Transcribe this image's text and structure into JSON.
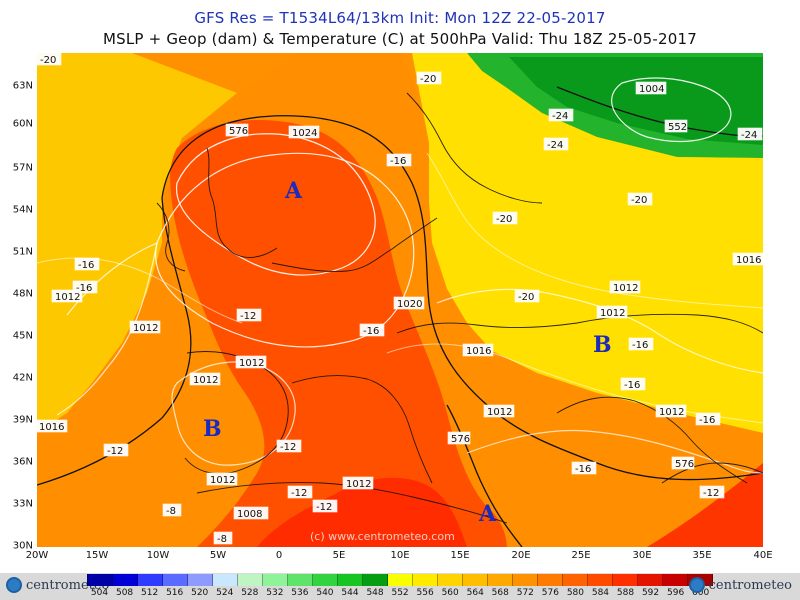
{
  "header": {
    "title_line1": "GFS Res = T1534L64/13km    Init: Mon 12Z 22-05-2017",
    "title_line2": "MSLP + Geop (dam) & Temperature (C) at 500hPa  Valid: Thu 18Z 25-05-2017"
  },
  "axes": {
    "lat_labels": [
      "63N",
      "60N",
      "57N",
      "54N",
      "51N",
      "48N",
      "45N",
      "42N",
      "39N",
      "36N",
      "33N",
      "30N"
    ],
    "lon_labels": [
      "20W",
      "15W",
      "10W",
      "5W",
      "0",
      "5E",
      "10E",
      "15E",
      "20E",
      "25E",
      "30E",
      "35E",
      "40E"
    ]
  },
  "pressure_systems": [
    {
      "symbol": "A",
      "kind": "high"
    },
    {
      "symbol": "B",
      "kind": "low"
    },
    {
      "symbol": "B",
      "kind": "low"
    },
    {
      "symbol": "A",
      "kind": "high"
    }
  ],
  "labels": {
    "mslp": [
      "1024",
      "1020",
      "1016",
      "1016",
      "1016",
      "1012",
      "1012",
      "1012",
      "1012",
      "1012",
      "1012",
      "1012",
      "1012",
      "1012",
      "1012",
      "1008",
      "1004"
    ],
    "geop": [
      "576",
      "576",
      "576",
      "552"
    ],
    "temp": [
      "-20",
      "-20",
      "-20",
      "-20",
      "-16",
      "-16",
      "-16",
      "-16",
      "-16",
      "-16",
      "-16",
      "-16",
      "-12",
      "-12",
      "-12",
      "-12",
      "-12",
      "-12",
      "-8",
      "-8",
      "-24",
      "-24",
      "-24",
      "-20"
    ]
  },
  "watermark": "(c) www.centrometeo.com",
  "legend": {
    "values": [
      "504",
      "508",
      "512",
      "516",
      "520",
      "524",
      "528",
      "532",
      "536",
      "540",
      "544",
      "548",
      "552",
      "556",
      "560",
      "564",
      "568",
      "572",
      "576",
      "580",
      "584",
      "588",
      "592",
      "596",
      "600"
    ],
    "colors": [
      "#0000a6",
      "#0000d6",
      "#2f3bff",
      "#5c6bff",
      "#8f9aff",
      "#c9e7ff",
      "#bff5c0",
      "#8ff39a",
      "#5fe36a",
      "#33d23f",
      "#16c521",
      "#059d11",
      "#f8ff00",
      "#ffea00",
      "#ffd400",
      "#ffbd00",
      "#ffa800",
      "#ff9200",
      "#ff7b00",
      "#ff6200",
      "#ff4b00",
      "#ff3000",
      "#e31400",
      "#c70000",
      "#a90000"
    ]
  },
  "branding": {
    "logo_text_left": "centrometeo",
    "logo_text_right": "centrometeo"
  }
}
